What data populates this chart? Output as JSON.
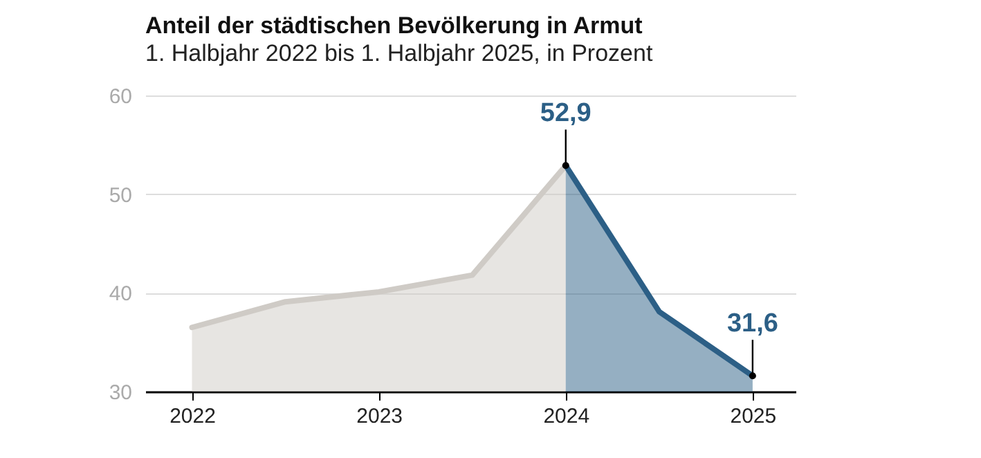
{
  "chart_data": {
    "type": "area",
    "title": "Anteil der städtischen Bevölkerung in Armut",
    "subtitle": "1. Halbjahr 2022 bis 1. Halbjahr 2025, in Prozent",
    "series": [
      {
        "color": "#cfcbc6",
        "x": [
          2022,
          2022.5,
          2023,
          2023.5,
          2024
        ],
        "values": [
          36.5,
          39.1,
          40.1,
          41.8,
          52.9
        ]
      },
      {
        "color": "#2c5f86",
        "x": [
          2024,
          2024.5,
          2025
        ],
        "values": [
          52.9,
          38.1,
          31.6
        ]
      }
    ],
    "xlim": [
      2021.75,
      2025.23
    ],
    "xticks": [
      2022,
      2023,
      2024,
      2025
    ],
    "ylim": [
      30,
      60
    ],
    "yticks": [
      30,
      40,
      50,
      60
    ],
    "grid": "y",
    "annotations": [
      {
        "text": "52,9",
        "x": 2024,
        "y": 52.9
      },
      {
        "text": "31,6",
        "x": 2025,
        "y": 31.6
      }
    ]
  }
}
